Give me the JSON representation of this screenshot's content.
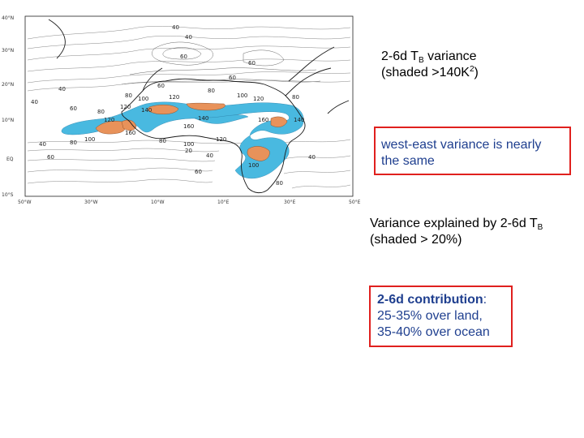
{
  "map": {
    "lat_ticks": [
      "40°N",
      "30°N",
      "20°N",
      "10°N",
      "EQ",
      "10°S"
    ],
    "lon_ticks": [
      "50°W",
      "30°W",
      "10°W",
      "10°E",
      "30°E",
      "50°E"
    ],
    "contour_labels": [
      "40",
      "40",
      "40",
      "40",
      "60",
      "60",
      "60",
      "60",
      "60",
      "60",
      "60",
      "80",
      "80",
      "80",
      "80",
      "80",
      "80",
      "80",
      "100",
      "100",
      "100",
      "100",
      "100",
      "120",
      "120",
      "120",
      "120",
      "120",
      "140",
      "140",
      "140",
      "160",
      "160",
      "160",
      "20",
      "40",
      "40",
      "40"
    ],
    "colors": {
      "shade_low": "#49b9e0",
      "shade_high": "#e8925a",
      "coast": "#1a1a1a",
      "contour": "#555555"
    }
  },
  "captions": {
    "variance_line1_prefix": "2-6d T",
    "variance_sub": "B",
    "variance_line1_suffix": " variance",
    "variance_line2_prefix": "(shaded >140K",
    "variance_sup": "2",
    "variance_line2_suffix": ")",
    "explained_line1_prefix": "Variance explained by 2-6d T",
    "explained_sub": "B",
    "explained_line2": "(shaded > 20%)"
  },
  "note1": {
    "line1": "west-east variance is nearly",
    "line2": "the same"
  },
  "note2": {
    "bold": "2-6d contribution",
    "colon": ":",
    "line2": "25-35% over land,",
    "line3": "35-40% over ocean"
  }
}
